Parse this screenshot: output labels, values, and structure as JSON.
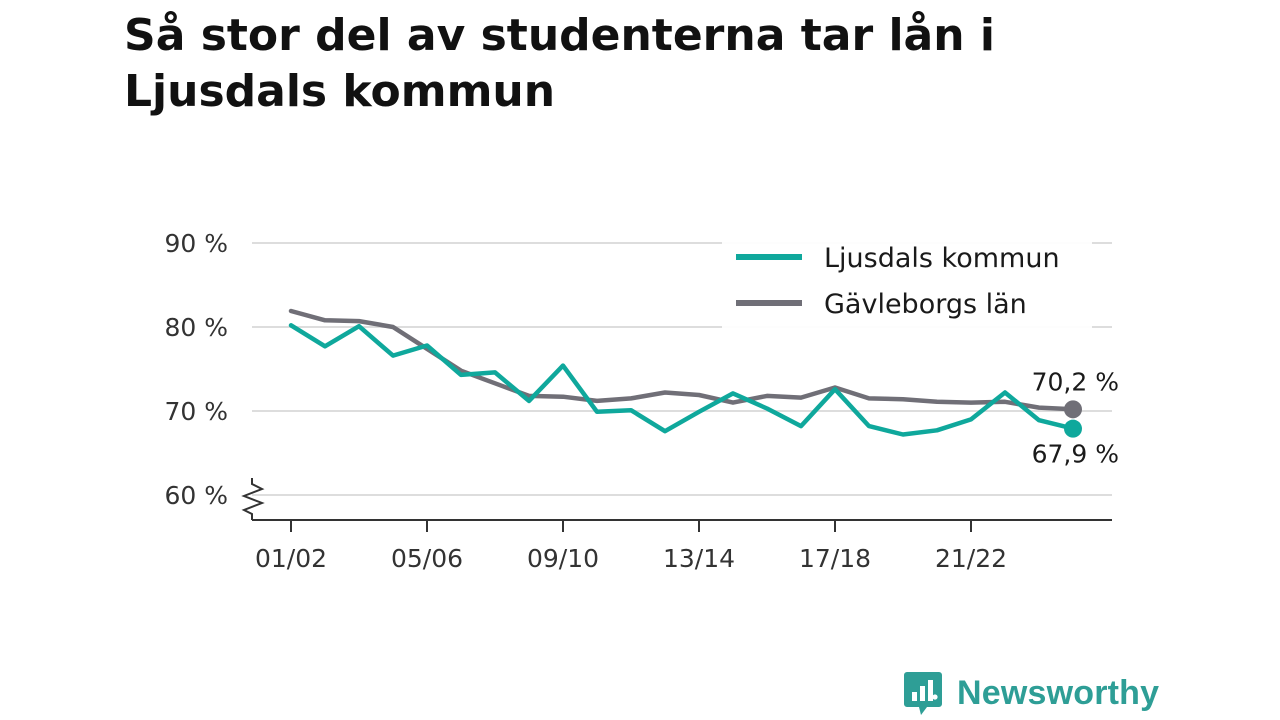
{
  "title": "Så stor del av studenterna tar lån i Ljusdals kommun",
  "brand": {
    "name": "Newsworthy",
    "color": "#2e9e96"
  },
  "chart_data": {
    "type": "line",
    "title": "Så stor del av studenterna tar lån i Ljusdals kommun",
    "x": [
      "01/02",
      "02/03",
      "03/04",
      "04/05",
      "05/06",
      "06/07",
      "07/08",
      "08/09",
      "09/10",
      "10/11",
      "11/12",
      "12/13",
      "13/14",
      "14/15",
      "15/16",
      "16/17",
      "17/18",
      "18/19",
      "19/20",
      "20/21",
      "21/22",
      "22/23",
      "23/24",
      "24/25"
    ],
    "x_tick_labels": [
      "01/02",
      "05/06",
      "09/10",
      "13/14",
      "17/18",
      "21/22"
    ],
    "y_ticks": [
      60,
      70,
      80,
      90
    ],
    "y_tick_labels": [
      "60 %",
      "70 %",
      "80 %",
      "90 %"
    ],
    "ylim": [
      57,
      92
    ],
    "y_axis_broken": true,
    "grid": true,
    "legend_position": "top-right",
    "series": [
      {
        "name": "Ljusdals kommun",
        "color": "#0fa89c",
        "values": [
          80.2,
          77.7,
          80.1,
          76.6,
          77.8,
          74.3,
          74.6,
          71.2,
          75.4,
          69.9,
          70.1,
          67.6,
          69.9,
          72.1,
          70.3,
          68.2,
          72.6,
          68.2,
          67.2,
          67.7,
          69.0,
          72.2,
          68.9,
          67.9
        ],
        "end_label": "67,9 %"
      },
      {
        "name": "Gävleborgs län",
        "color": "#706f77",
        "values": [
          81.9,
          80.8,
          80.7,
          80.0,
          77.4,
          74.8,
          73.3,
          71.8,
          71.7,
          71.2,
          71.5,
          72.2,
          71.9,
          71.0,
          71.8,
          71.6,
          72.8,
          71.5,
          71.4,
          71.1,
          71.0,
          71.1,
          70.4,
          70.2
        ],
        "end_label": "70,2 %"
      }
    ]
  }
}
